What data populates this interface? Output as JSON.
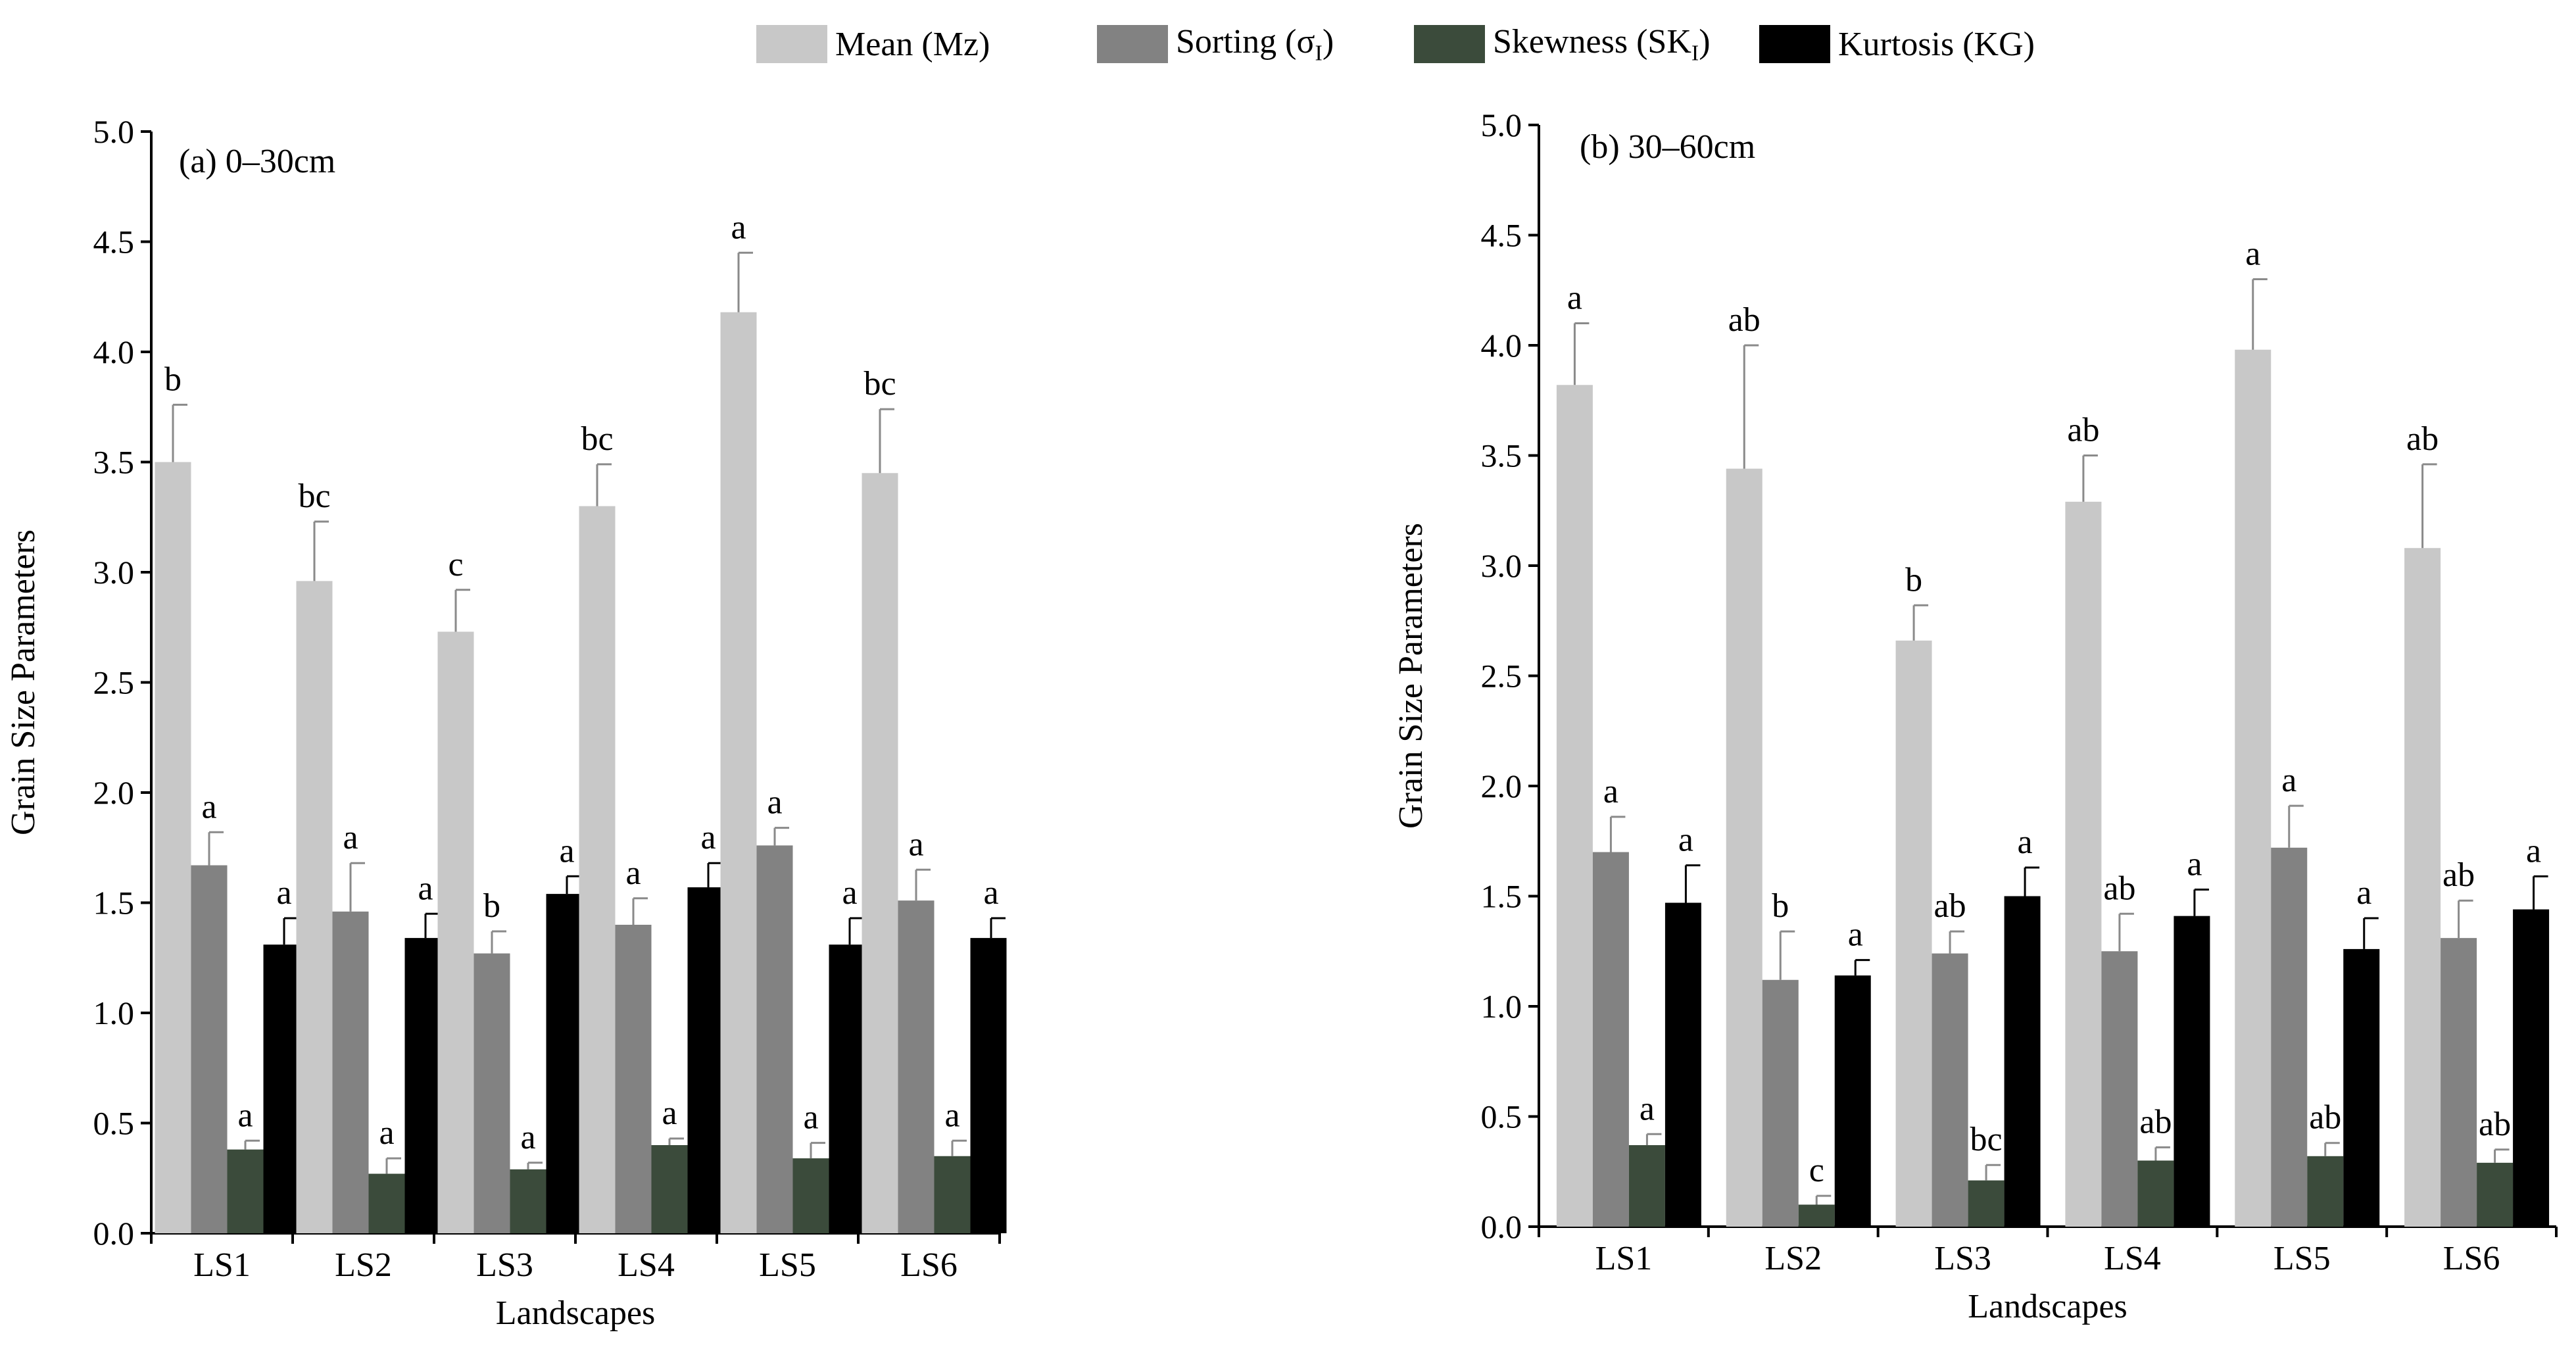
{
  "legend": [
    {
      "label": "Mean (Mz)",
      "sub": "",
      "suffix": "",
      "color": "#c8c8c8"
    },
    {
      "label": "Sorting (σ",
      "sub": "I",
      "suffix": ")",
      "color": "#828282"
    },
    {
      "label": "Skewness (SK",
      "sub": "I",
      "suffix": ")",
      "color": "#3b4b3b"
    },
    {
      "label": "Kurtosis (KG)",
      "sub": "",
      "suffix": "",
      "color": "#000000"
    }
  ],
  "chart_data": [
    {
      "type": "bar",
      "title": "(a) 0–30cm",
      "xlabel": "Landscapes",
      "ylabel": "Grain Size Parameters",
      "ylim": [
        0,
        5.0
      ],
      "yticks": [
        "0.0",
        "0.5",
        "1.0",
        "1.5",
        "2.0",
        "2.5",
        "3.0",
        "3.5",
        "4.0",
        "4.5",
        "5.0"
      ],
      "categories": [
        "LS1",
        "LS2",
        "LS3",
        "LS4",
        "LS5",
        "LS6"
      ],
      "series": [
        {
          "name": "Mean (Mz)",
          "color": "#c8c8c8",
          "values": [
            3.5,
            2.96,
            2.73,
            3.3,
            4.18,
            3.45
          ],
          "errors": [
            0.26,
            0.27,
            0.19,
            0.19,
            0.27,
            0.29
          ],
          "labels": [
            "b",
            "bc",
            "c",
            "bc",
            "a",
            "bc"
          ]
        },
        {
          "name": "Sorting (σI)",
          "color": "#828282",
          "values": [
            1.67,
            1.46,
            1.27,
            1.4,
            1.76,
            1.51
          ],
          "errors": [
            0.15,
            0.22,
            0.1,
            0.12,
            0.08,
            0.14
          ],
          "labels": [
            "a",
            "a",
            "b",
            "a",
            "a",
            "a"
          ]
        },
        {
          "name": "Skewness (SKI)",
          "color": "#3b4b3b",
          "values": [
            0.38,
            0.27,
            0.29,
            0.4,
            0.34,
            0.35
          ],
          "errors": [
            0.04,
            0.07,
            0.03,
            0.03,
            0.07,
            0.07
          ],
          "labels": [
            "a",
            "a",
            "a",
            "a",
            "a",
            "a"
          ]
        },
        {
          "name": "Kurtosis (KG)",
          "color": "#000000",
          "values": [
            1.31,
            1.34,
            1.54,
            1.57,
            1.31,
            1.34
          ],
          "errors": [
            0.12,
            0.11,
            0.08,
            0.11,
            0.12,
            0.09
          ],
          "labels": [
            "a",
            "a",
            "a",
            "a",
            "a",
            "a"
          ]
        }
      ]
    },
    {
      "type": "bar",
      "title": "(b) 30–60cm",
      "xlabel": "Landscapes",
      "ylabel": "Grain Size Parameters",
      "ylim": [
        0,
        5.0
      ],
      "yticks": [
        "0.0",
        "0.5",
        "1.0",
        "1.5",
        "2.0",
        "2.5",
        "3.0",
        "3.5",
        "4.0",
        "4.5",
        "5.0"
      ],
      "categories": [
        "LS1",
        "LS2",
        "LS3",
        "LS4",
        "LS5",
        "LS6"
      ],
      "series": [
        {
          "name": "Mean (Mz)",
          "color": "#c8c8c8",
          "values": [
            3.82,
            3.44,
            2.66,
            3.29,
            3.98,
            3.08
          ],
          "errors": [
            0.28,
            0.56,
            0.16,
            0.21,
            0.32,
            0.38
          ],
          "labels": [
            "a",
            "ab",
            "b",
            "ab",
            "a",
            "ab"
          ]
        },
        {
          "name": "Sorting (σI)",
          "color": "#828282",
          "values": [
            1.7,
            1.12,
            1.24,
            1.25,
            1.72,
            1.31
          ],
          "errors": [
            0.16,
            0.22,
            0.1,
            0.17,
            0.19,
            0.17
          ],
          "labels": [
            "a",
            "b",
            "ab",
            "ab",
            "a",
            "ab"
          ]
        },
        {
          "name": "Skewness (SKI)",
          "color": "#3b4b3b",
          "values": [
            0.37,
            0.1,
            0.21,
            0.3,
            0.32,
            0.29
          ],
          "errors": [
            0.05,
            0.04,
            0.07,
            0.06,
            0.06,
            0.06
          ],
          "labels": [
            "a",
            "c",
            "bc",
            "ab",
            "ab",
            "ab"
          ]
        },
        {
          "name": "Kurtosis (KG)",
          "color": "#000000",
          "values": [
            1.47,
            1.14,
            1.5,
            1.41,
            1.26,
            1.44
          ],
          "errors": [
            0.17,
            0.07,
            0.13,
            0.12,
            0.14,
            0.15
          ],
          "labels": [
            "a",
            "a",
            "a",
            "a",
            "a",
            "a"
          ]
        }
      ]
    }
  ]
}
